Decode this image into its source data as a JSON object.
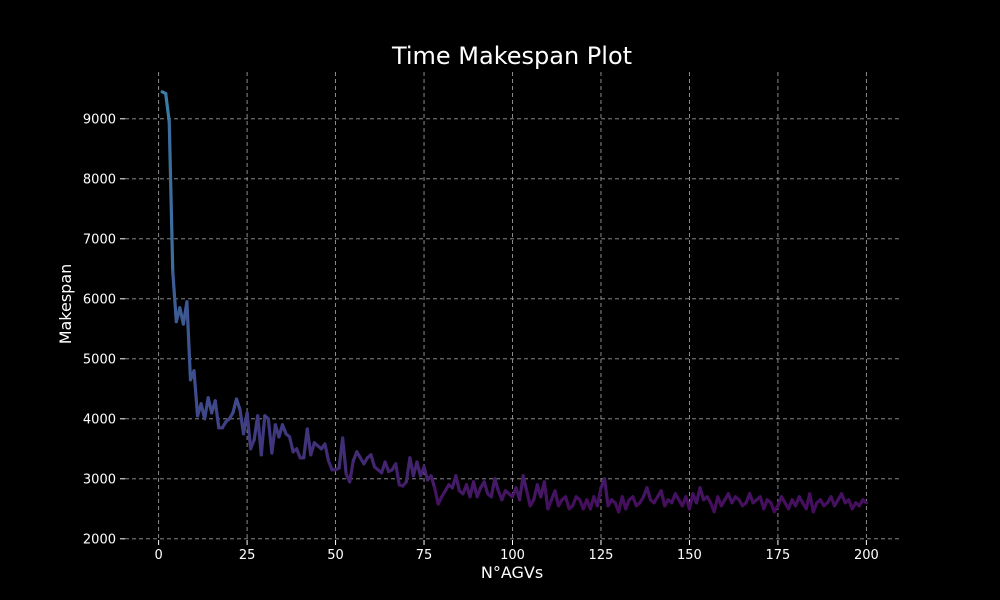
{
  "chart_data": {
    "type": "line",
    "title": "Time Makespan Plot",
    "xlabel": "N°AGVs",
    "ylabel": "Makespan",
    "xlim": [
      -9.5,
      209.5
    ],
    "ylim": [
      1980,
      9780
    ],
    "xticks": [
      0,
      25,
      50,
      75,
      100,
      125,
      150,
      175,
      200
    ],
    "yticks": [
      2000,
      3000,
      4000,
      5000,
      6000,
      7000,
      8000,
      9000
    ],
    "grid": true,
    "background": "#000000",
    "colormap": "viridis (upper range to lower range)",
    "color_start": "#3a7fa6",
    "color_mid": "#3e4b8c",
    "color_end": "#460c5c",
    "series": [
      {
        "x": [
          1,
          2,
          3,
          4,
          5,
          6,
          7,
          8,
          9,
          10,
          11,
          12,
          13,
          14,
          15,
          16,
          17,
          18,
          19,
          20,
          21,
          22,
          23,
          24,
          25,
          26,
          27,
          28,
          29,
          30,
          31,
          32,
          33,
          34,
          35,
          36,
          37,
          38,
          39,
          40,
          41,
          42,
          43,
          44,
          45,
          46,
          47,
          48,
          49,
          50,
          51,
          52,
          53,
          54,
          55,
          56,
          57,
          58,
          59,
          60,
          61,
          62,
          63,
          64,
          65,
          66,
          67,
          68,
          69,
          70,
          71,
          72,
          73,
          74,
          75,
          76,
          77,
          78,
          79,
          80,
          81,
          82,
          83,
          84,
          85,
          86,
          87,
          88,
          89,
          90,
          91,
          92,
          93,
          94,
          95,
          96,
          97,
          98,
          99,
          100,
          101,
          102,
          103,
          104,
          105,
          106,
          107,
          108,
          109,
          110,
          111,
          112,
          113,
          114,
          115,
          116,
          117,
          118,
          119,
          120,
          121,
          122,
          123,
          124,
          125,
          126,
          127,
          128,
          129,
          130,
          131,
          132,
          133,
          134,
          135,
          136,
          137,
          138,
          139,
          140,
          141,
          142,
          143,
          144,
          145,
          146,
          147,
          148,
          149,
          150,
          151,
          152,
          153,
          154,
          155,
          156,
          157,
          158,
          159,
          160,
          161,
          162,
          163,
          164,
          165,
          166,
          167,
          168,
          169,
          170,
          171,
          172,
          173,
          174,
          175,
          176,
          177,
          178,
          179,
          180,
          181,
          182,
          183,
          184,
          185,
          186,
          187,
          188,
          189,
          190,
          191,
          192,
          193,
          194,
          195,
          196,
          197,
          198,
          199,
          200
        ],
        "y": [
          9450,
          9420,
          8950,
          6450,
          5620,
          5850,
          5580,
          5950,
          4650,
          4800,
          4050,
          4250,
          4000,
          4350,
          4100,
          4300,
          3850,
          3850,
          3950,
          4000,
          4100,
          4330,
          4150,
          3750,
          4100,
          3500,
          3650,
          4050,
          3400,
          4050,
          4000,
          3430,
          3900,
          3700,
          3900,
          3750,
          3700,
          3450,
          3500,
          3350,
          3350,
          3830,
          3400,
          3600,
          3550,
          3500,
          3580,
          3300,
          3150,
          3150,
          3180,
          3680,
          3080,
          2950,
          3300,
          3450,
          3350,
          3250,
          3350,
          3400,
          3200,
          3150,
          3100,
          3280,
          3120,
          3150,
          3250,
          2900,
          2880,
          2950,
          3350,
          3050,
          3280,
          3050,
          3200,
          2980,
          3050,
          2850,
          2580,
          2700,
          2800,
          2900,
          2850,
          3050,
          2800,
          2750,
          2900,
          2700,
          2950,
          2700,
          2850,
          2950,
          2750,
          2700,
          3000,
          2800,
          2650,
          2800,
          2750,
          2700,
          2850,
          2650,
          3050,
          2800,
          2550,
          2650,
          2900,
          2700,
          2950,
          2500,
          2650,
          2800,
          2550,
          2650,
          2700,
          2500,
          2550,
          2700,
          2650,
          2500,
          2650,
          2500,
          2700,
          2550,
          2850,
          3000,
          2550,
          2650,
          2600,
          2450,
          2700,
          2500,
          2650,
          2700,
          2550,
          2600,
          2700,
          2850,
          2650,
          2600,
          2700,
          2800,
          2550,
          2650,
          2600,
          2750,
          2650,
          2550,
          2700,
          2500,
          2750,
          2600,
          2850,
          2650,
          2700,
          2600,
          2450,
          2700,
          2550,
          2650,
          2750,
          2600,
          2700,
          2650,
          2550,
          2600,
          2750,
          2600,
          2650,
          2700,
          2500,
          2650,
          2600,
          2450,
          2550,
          2700,
          2600,
          2500,
          2650,
          2550,
          2700,
          2600,
          2500,
          2750,
          2450,
          2600,
          2650,
          2550,
          2600,
          2700,
          2550,
          2650,
          2750,
          2600,
          2650,
          2500,
          2600,
          2550,
          2650,
          2600
        ]
      }
    ]
  }
}
